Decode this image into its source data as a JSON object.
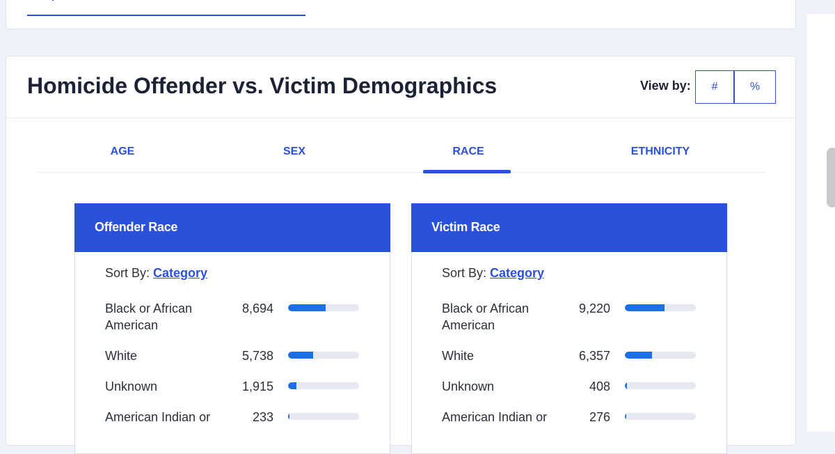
{
  "header": {
    "title": "Homicide Offender vs. Victim Demographics",
    "view_by_label": "View by:",
    "view_options": [
      {
        "label": "#"
      },
      {
        "label": "%"
      }
    ]
  },
  "tabs": [
    {
      "label": "AGE"
    },
    {
      "label": "SEX"
    },
    {
      "label": "RACE",
      "active": true
    },
    {
      "label": "ETHNICITY"
    }
  ],
  "panels": {
    "offender": {
      "title": "Offender Race",
      "sort_prefix": "Sort By:",
      "sort_value": "Category",
      "rows": [
        {
          "label": "Black or African American",
          "value": "8,694",
          "fill": 0.53
        },
        {
          "label": "White",
          "value": "5,738",
          "fill": 0.35
        },
        {
          "label": "Unknown",
          "value": "1,915",
          "fill": 0.12
        },
        {
          "label": "American Indian or",
          "value": "233",
          "fill": 0.015
        }
      ]
    },
    "victim": {
      "title": "Victim Race",
      "sort_prefix": "Sort By:",
      "sort_value": "Category",
      "rows": [
        {
          "label": "Black or African American",
          "value": "9,220",
          "fill": 0.56
        },
        {
          "label": "White",
          "value": "6,357",
          "fill": 0.38
        },
        {
          "label": "Unknown",
          "value": "408",
          "fill": 0.025
        },
        {
          "label": "American Indian or",
          "value": "276",
          "fill": 0.017
        }
      ]
    }
  },
  "colors": {
    "accent": "#2b50d9",
    "bar": "#1d6fe8",
    "track": "#e6e9ef",
    "background": "#eef1f8"
  }
}
